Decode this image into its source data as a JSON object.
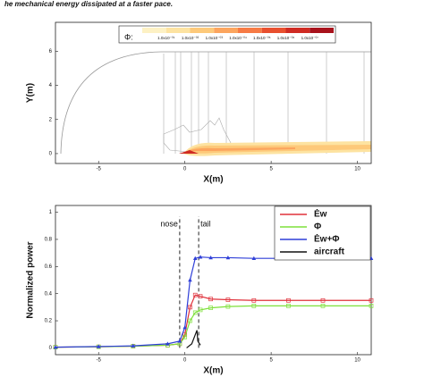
{
  "caption": "he mechanical energy dissipated at a faster pace.",
  "chart_data": [
    {
      "type": "contour",
      "xlabel": "X(m)",
      "ylabel": "Y(m)",
      "xlim": [
        -7.5,
        10.8
      ],
      "ylim": [
        -0.58,
        7.7
      ],
      "xticks": [
        -5,
        0,
        5,
        10
      ],
      "yticks": [
        0,
        2,
        4,
        6
      ],
      "colorbar": {
        "title": "Φ:",
        "colors": [
          "#fdf1c4",
          "#fde3a1",
          "#fdc97a",
          "#fca55e",
          "#f77b45",
          "#e8502f",
          "#cf2b23",
          "#a8121c"
        ],
        "labels": [
          "1.0x10⁻⁰¹",
          "1.0x10⁻⁰²",
          "1.0x10⁻⁰³",
          "1.0x10⁻⁰⁴",
          "1.0x10⁻⁰⁵",
          "1.0x10⁻⁰⁶",
          "1.0x10⁻⁰⁷"
        ]
      }
    },
    {
      "type": "line",
      "xlabel": "X(m)",
      "ylabel": "Normalized power",
      "xlim": [
        -7.5,
        10.8
      ],
      "ylim": [
        -0.05,
        1.05
      ],
      "xticks": [
        -5,
        0,
        5,
        10
      ],
      "yticks": [
        0,
        0.2,
        0.4,
        0.6,
        0.8,
        1
      ],
      "annotations": [
        {
          "text": "nose",
          "x": -0.3
        },
        {
          "text": "tail",
          "x": 0.8
        }
      ],
      "series": [
        {
          "name": "Ėw",
          "color": "#e0303a",
          "marker": "square",
          "x": [
            -7.5,
            -5,
            -3,
            -1,
            -0.3,
            0,
            0.3,
            0.6,
            0.9,
            1.5,
            2.5,
            4,
            6,
            8,
            10.8
          ],
          "values": [
            0.005,
            0.008,
            0.012,
            0.02,
            0.03,
            0.1,
            0.3,
            0.39,
            0.38,
            0.36,
            0.355,
            0.35,
            0.35,
            0.35,
            0.35
          ]
        },
        {
          "name": "Φ",
          "color": "#7ee03a",
          "marker": "square",
          "x": [
            -7.5,
            -5,
            -3,
            -1,
            -0.3,
            0,
            0.3,
            0.6,
            0.9,
            1.5,
            2.5,
            4,
            6,
            8,
            10.8
          ],
          "values": [
            0.005,
            0.008,
            0.012,
            0.02,
            0.03,
            0.08,
            0.2,
            0.26,
            0.28,
            0.295,
            0.305,
            0.31,
            0.31,
            0.31,
            0.31
          ]
        },
        {
          "name": "Ėw+Φ",
          "color": "#2f3fd8",
          "marker": "triangle",
          "x": [
            -7.5,
            -5,
            -3,
            -1,
            -0.3,
            0,
            0.3,
            0.6,
            0.9,
            1.5,
            2.5,
            4,
            6,
            8,
            10.8
          ],
          "values": [
            0.005,
            0.01,
            0.015,
            0.03,
            0.05,
            0.15,
            0.5,
            0.66,
            0.67,
            0.665,
            0.665,
            0.66,
            0.66,
            0.66,
            0.66
          ]
        },
        {
          "name": "aircraft",
          "color": "#111111",
          "marker": "none",
          "x": [
            0.1,
            0.4,
            0.7,
            0.75,
            0.9
          ],
          "values": [
            0.0,
            0.03,
            0.13,
            0.05,
            0.02
          ]
        }
      ]
    }
  ]
}
